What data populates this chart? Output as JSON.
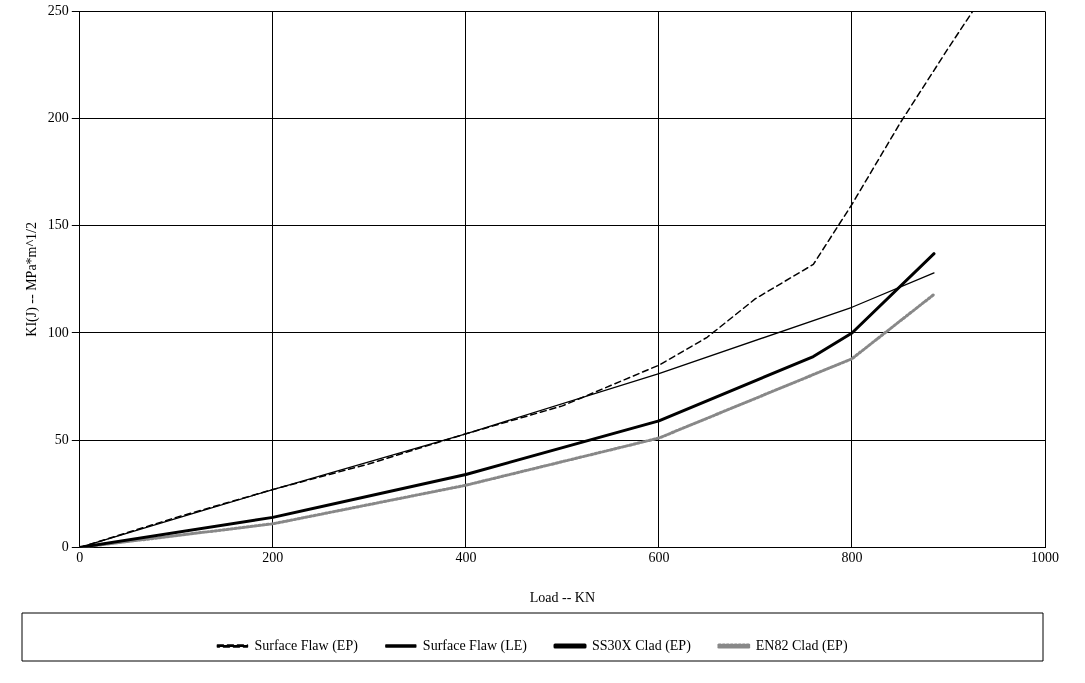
{
  "chart_data": {
    "type": "line",
    "xlabel": "Load -- KN",
    "ylabel": "KI(J) -- MPa*m^1/2",
    "xlim": [
      0,
      1000
    ],
    "xticks": [
      0,
      200,
      400,
      600,
      800,
      1000
    ],
    "ylim": [
      0,
      250
    ],
    "yticks": [
      0,
      50,
      100,
      150,
      200,
      250
    ],
    "grid": true,
    "legend": "bottom",
    "marker": "none",
    "series": [
      {
        "name": "Surface Flaw (EP)",
        "color": "#000000",
        "line_style": "dashed",
        "x": [
          0,
          100,
          200,
          300,
          400,
          500,
          600,
          650,
          700,
          760,
          800,
          850,
          900,
          925
        ],
        "values": [
          0,
          14,
          27,
          39,
          53,
          66,
          85,
          98,
          116,
          132,
          160,
          198,
          233,
          250
        ]
      },
      {
        "name": "Surface Flaw (LE)",
        "color": "#000000",
        "line_style": "solid",
        "x": [
          0,
          200,
          400,
          600,
          800,
          885
        ],
        "values": [
          0,
          27,
          53,
          81,
          112,
          128
        ]
      },
      {
        "name": "SS30X Clad (EP)",
        "color": "#000000",
        "line_style": "solid",
        "x": [
          0,
          200,
          400,
          600,
          760,
          800,
          885
        ],
        "values": [
          0,
          14,
          34,
          59,
          89,
          100,
          137
        ]
      },
      {
        "name": "EN82 Clad (EP)",
        "color": "#888888",
        "line_style": "dotted",
        "x": [
          0,
          200,
          400,
          600,
          800,
          885
        ],
        "values": [
          0,
          11,
          29,
          51,
          88,
          118
        ]
      }
    ]
  }
}
